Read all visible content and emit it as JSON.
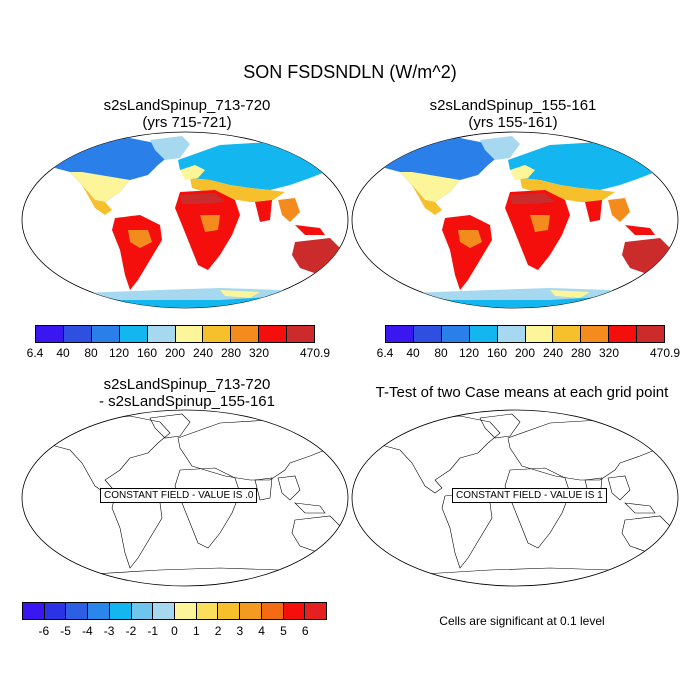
{
  "main_title": "SON FSDSNDLN (W/m^2)",
  "panels": {
    "top_left": {
      "title_line1": "s2sLandSpinup_713-720",
      "title_line2": "(yrs 715-721)"
    },
    "top_right": {
      "title_line1": "s2sLandSpinup_155-161",
      "title_line2": "(yrs 155-161)"
    },
    "bottom_left": {
      "title_line1": "s2sLandSpinup_713-720",
      "title_line2": "- s2sLandSpinup_155-161",
      "constant_label": "CONSTANT FIELD - VALUE IS .0"
    },
    "bottom_right": {
      "title_line1": "T-Test of two Case means at each grid point",
      "constant_label": "CONSTANT FIELD - VALUE IS 1"
    }
  },
  "colorbar_top": {
    "colors": [
      "#3a17f0",
      "#2f4fe0",
      "#2a7fe8",
      "#13b6ee",
      "#a6d8ef",
      "#fcf59a",
      "#f6c02c",
      "#f48c1d",
      "#f40f0d",
      "#cc2b2b"
    ],
    "labels": [
      "6.4",
      "40",
      "80",
      "120",
      "160",
      "200",
      "240",
      "280",
      "320",
      "470.9"
    ]
  },
  "colorbar_bottom": {
    "colors": [
      "#3a17f0",
      "#2c32e6",
      "#2d5fe5",
      "#2b86ec",
      "#13b6ee",
      "#6ec6ef",
      "#a6d8ef",
      "#fcf59a",
      "#f9df5c",
      "#f6c02c",
      "#f49a20",
      "#f36b12",
      "#f40f0d",
      "#e52020",
      "#cc2b2b"
    ],
    "labels": [
      "-6",
      "-5",
      "-4",
      "-3",
      "-2",
      "-1",
      "0",
      "1",
      "2",
      "3",
      "4",
      "5",
      "6"
    ]
  },
  "significance_note": "Cells are significant at 0.1 level",
  "colors": {
    "ocean": "#ffffff",
    "land_polar": "#2a7fe8",
    "land_cold": "#13b6ee",
    "land_cool": "#a6d8ef",
    "land_mild": "#fcf59a",
    "land_warm": "#f6c02c",
    "land_hot": "#f48c1d",
    "land_vhot": "#f40f0d",
    "land_max": "#cc2b2b"
  }
}
